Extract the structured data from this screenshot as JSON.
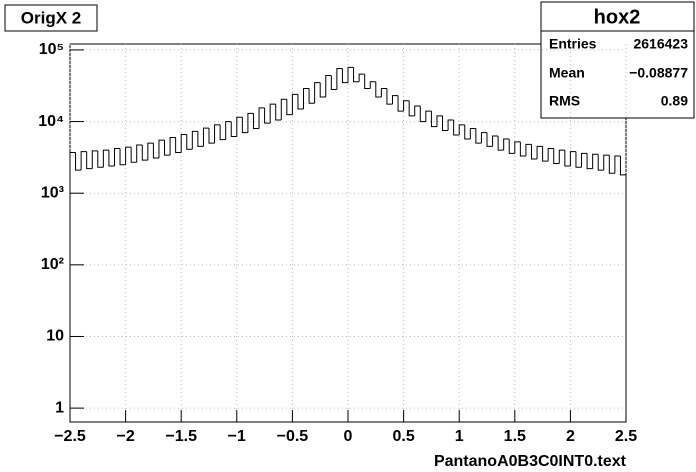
{
  "chart_data": {
    "type": "histogram",
    "title": "OrigX 2",
    "x_label": "PantanoA0B3C0INT0.text",
    "bins": [
      -2.5,
      -2.45,
      -2.4,
      -2.35,
      -2.3,
      -2.25,
      -2.2,
      -2.15,
      -2.1,
      -2.05,
      -2,
      -1.95,
      -1.9,
      -1.85,
      -1.8,
      -1.75,
      -1.7,
      -1.65,
      -1.6,
      -1.55,
      -1.5,
      -1.45,
      -1.4,
      -1.35,
      -1.3,
      -1.25,
      -1.2,
      -1.15,
      -1.1,
      -1.05,
      -1,
      -0.95,
      -0.9,
      -0.85,
      -0.8,
      -0.75,
      -0.7,
      -0.65,
      -0.6,
      -0.55,
      -0.5,
      -0.45,
      -0.4,
      -0.35,
      -0.3,
      -0.25,
      -0.2,
      -0.15,
      -0.1,
      -0.05,
      0,
      0.05,
      0.1,
      0.15,
      0.2,
      0.25,
      0.3,
      0.35,
      0.4,
      0.45,
      0.5,
      0.55,
      0.6,
      0.65,
      0.7,
      0.75,
      0.8,
      0.85,
      0.9,
      0.95,
      1,
      1.05,
      1.1,
      1.15,
      1.2,
      1.25,
      1.3,
      1.35,
      1.4,
      1.45,
      1.5,
      1.55,
      1.6,
      1.65,
      1.7,
      1.75,
      1.8,
      1.85,
      1.9,
      1.95,
      2,
      2.05,
      2.1,
      2.15,
      2.2,
      2.25,
      2.3,
      2.35,
      2.4,
      2.45,
      2.5
    ],
    "values": [
      3700,
      2100,
      3800,
      2200,
      3900,
      2300,
      4000,
      2400,
      4200,
      2500,
      4400,
      2700,
      4700,
      2900,
      5000,
      3100,
      5500,
      3400,
      6000,
      3700,
      6600,
      4100,
      7300,
      4500,
      8100,
      5000,
      9000,
      5600,
      10000,
      6200,
      11500,
      7000,
      13000,
      8000,
      15500,
      9500,
      17500,
      10500,
      20500,
      12500,
      24000,
      15000,
      29000,
      18000,
      35000,
      22000,
      44000,
      28000,
      55000,
      35000,
      57000,
      36000,
      46000,
      29000,
      36000,
      22000,
      29000,
      17500,
      23000,
      14000,
      19500,
      12000,
      16500,
      10000,
      14000,
      8500,
      12000,
      7500,
      10500,
      6500,
      9000,
      5700,
      8000,
      5000,
      7000,
      4500,
      6300,
      4000,
      5700,
      3600,
      5200,
      3300,
      4800,
      3000,
      4500,
      2800,
      4200,
      2600,
      4000,
      2400,
      3800,
      2300,
      3600,
      2200,
      3500,
      2100,
      3400,
      1900,
      3300,
      1800
    ],
    "color": "#000000",
    "log_y": true,
    "grid": true,
    "xlim": [
      -2.5,
      2.5
    ],
    "xticks": [
      {
        "value": -2.5,
        "label": "−2.5"
      },
      {
        "value": -2,
        "label": "−2"
      },
      {
        "value": -1.5,
        "label": "−1.5"
      },
      {
        "value": -1,
        "label": "−1"
      },
      {
        "value": -0.5,
        "label": "−0.5"
      },
      0,
      0.5,
      1,
      1.5,
      2,
      2.5
    ],
    "ylim": [
      0.64,
      121000
    ],
    "yticks": [
      1,
      10,
      {
        "value": 100,
        "label": "10²"
      },
      {
        "value": 1000,
        "label": "10³"
      },
      {
        "value": 10000,
        "label": "10⁴"
      },
      {
        "value": 100000,
        "label": "10⁵"
      }
    ],
    "stats": {
      "title": "hox2",
      "rows": [
        {
          "label": "Entries",
          "value": "2616423"
        },
        {
          "label": "Mean",
          "value": "−0.08877"
        },
        {
          "label": "RMS",
          "value": "0.89"
        }
      ]
    }
  }
}
